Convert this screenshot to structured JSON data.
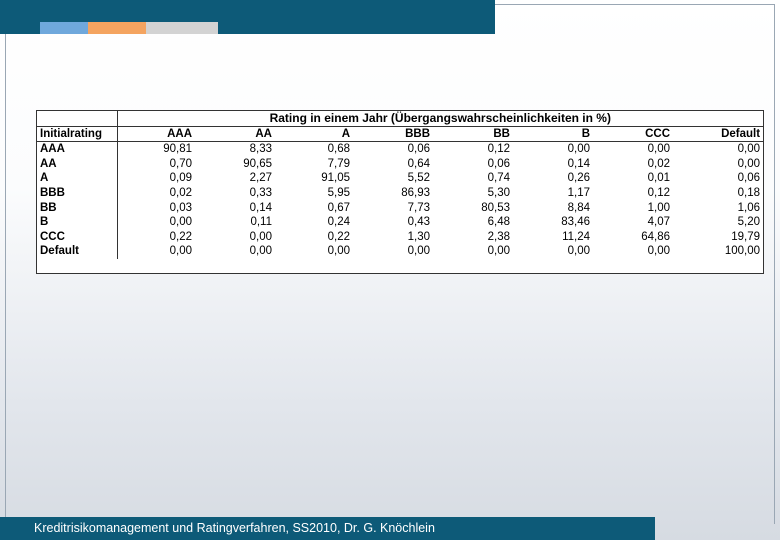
{
  "footer": {
    "text": "Kreditrisikomanagement und Ratingverfahren, SS2010, Dr. G. Knöchlein"
  },
  "accent_colors": {
    "bar": "#0d5a78",
    "swatch_blue": "#6fa8dc",
    "swatch_orange": "#f4a460",
    "swatch_gray": "#d3d3d3"
  },
  "table": {
    "title": "Rating in einem Jahr (Übergangswahrscheinlichkeiten in %)",
    "row_header": "Initialrating",
    "columns": [
      "AAA",
      "AA",
      "A",
      "BBB",
      "BB",
      "B",
      "CCC",
      "Default"
    ],
    "rows": [
      {
        "label": "AAA",
        "values": [
          "90,81",
          "8,33",
          "0,68",
          "0,06",
          "0,12",
          "0,00",
          "0,00",
          "0,00"
        ]
      },
      {
        "label": "AA",
        "values": [
          "0,70",
          "90,65",
          "7,79",
          "0,64",
          "0,06",
          "0,14",
          "0,02",
          "0,00"
        ]
      },
      {
        "label": "A",
        "values": [
          "0,09",
          "2,27",
          "91,05",
          "5,52",
          "0,74",
          "0,26",
          "0,01",
          "0,06"
        ]
      },
      {
        "label": "BBB",
        "values": [
          "0,02",
          "0,33",
          "5,95",
          "86,93",
          "5,30",
          "1,17",
          "0,12",
          "0,18"
        ]
      },
      {
        "label": "BB",
        "values": [
          "0,03",
          "0,14",
          "0,67",
          "7,73",
          "80,53",
          "8,84",
          "1,00",
          "1,06"
        ]
      },
      {
        "label": "B",
        "values": [
          "0,00",
          "0,11",
          "0,24",
          "0,43",
          "6,48",
          "83,46",
          "4,07",
          "5,20"
        ]
      },
      {
        "label": "CCC",
        "values": [
          "0,22",
          "0,00",
          "0,22",
          "1,30",
          "2,38",
          "11,24",
          "64,86",
          "19,79"
        ]
      },
      {
        "label": "Default",
        "values": [
          "0,00",
          "0,00",
          "0,00",
          "0,00",
          "0,00",
          "0,00",
          "0,00",
          "100,00"
        ]
      }
    ]
  }
}
